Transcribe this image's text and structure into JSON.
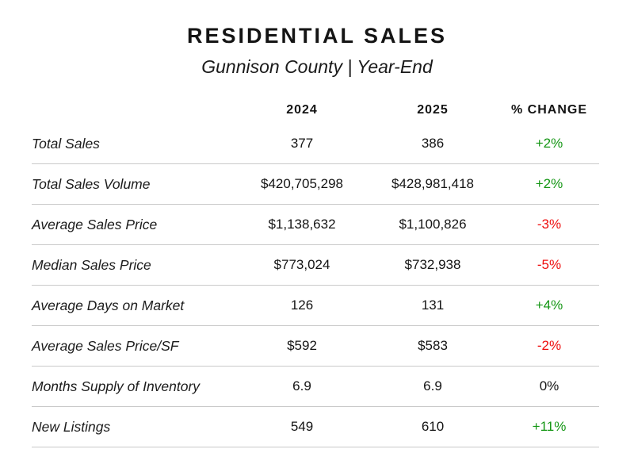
{
  "header": {
    "title": "RESIDENTIAL SALES",
    "subtitle": "Gunnison County | Year-End"
  },
  "chart_data": {
    "type": "table",
    "title": "RESIDENTIAL SALES",
    "subtitle": "Gunnison County | Year-End",
    "columns": [
      "",
      "2024",
      "2025",
      "% CHANGE"
    ],
    "rows": [
      {
        "label": "Total Sales",
        "y2024": "377",
        "y2025": "386",
        "change": "+2%",
        "trend": "up"
      },
      {
        "label": "Total Sales Volume",
        "y2024": "$420,705,298",
        "y2025": "$428,981,418",
        "change": "+2%",
        "trend": "up"
      },
      {
        "label": "Average Sales Price",
        "y2024": "$1,138,632",
        "y2025": "$1,100,826",
        "change": "-3%",
        "trend": "down"
      },
      {
        "label": "Median Sales Price",
        "y2024": "$773,024",
        "y2025": "$732,938",
        "change": "-5%",
        "trend": "down"
      },
      {
        "label": "Average Days on Market",
        "y2024": "126",
        "y2025": "131",
        "change": "+4%",
        "trend": "up"
      },
      {
        "label": "Average Sales Price/SF",
        "y2024": "$592",
        "y2025": "$583",
        "change": "-2%",
        "trend": "down"
      },
      {
        "label": "Months Supply of Inventory",
        "y2024": "6.9",
        "y2025": "6.9",
        "change": "0%",
        "trend": "flat"
      },
      {
        "label": "New Listings",
        "y2024": "549",
        "y2025": "610",
        "change": "+11%",
        "trend": "up"
      }
    ]
  },
  "colors": {
    "up": "#149614",
    "down": "#ee0e0e",
    "flat": "#141414"
  }
}
